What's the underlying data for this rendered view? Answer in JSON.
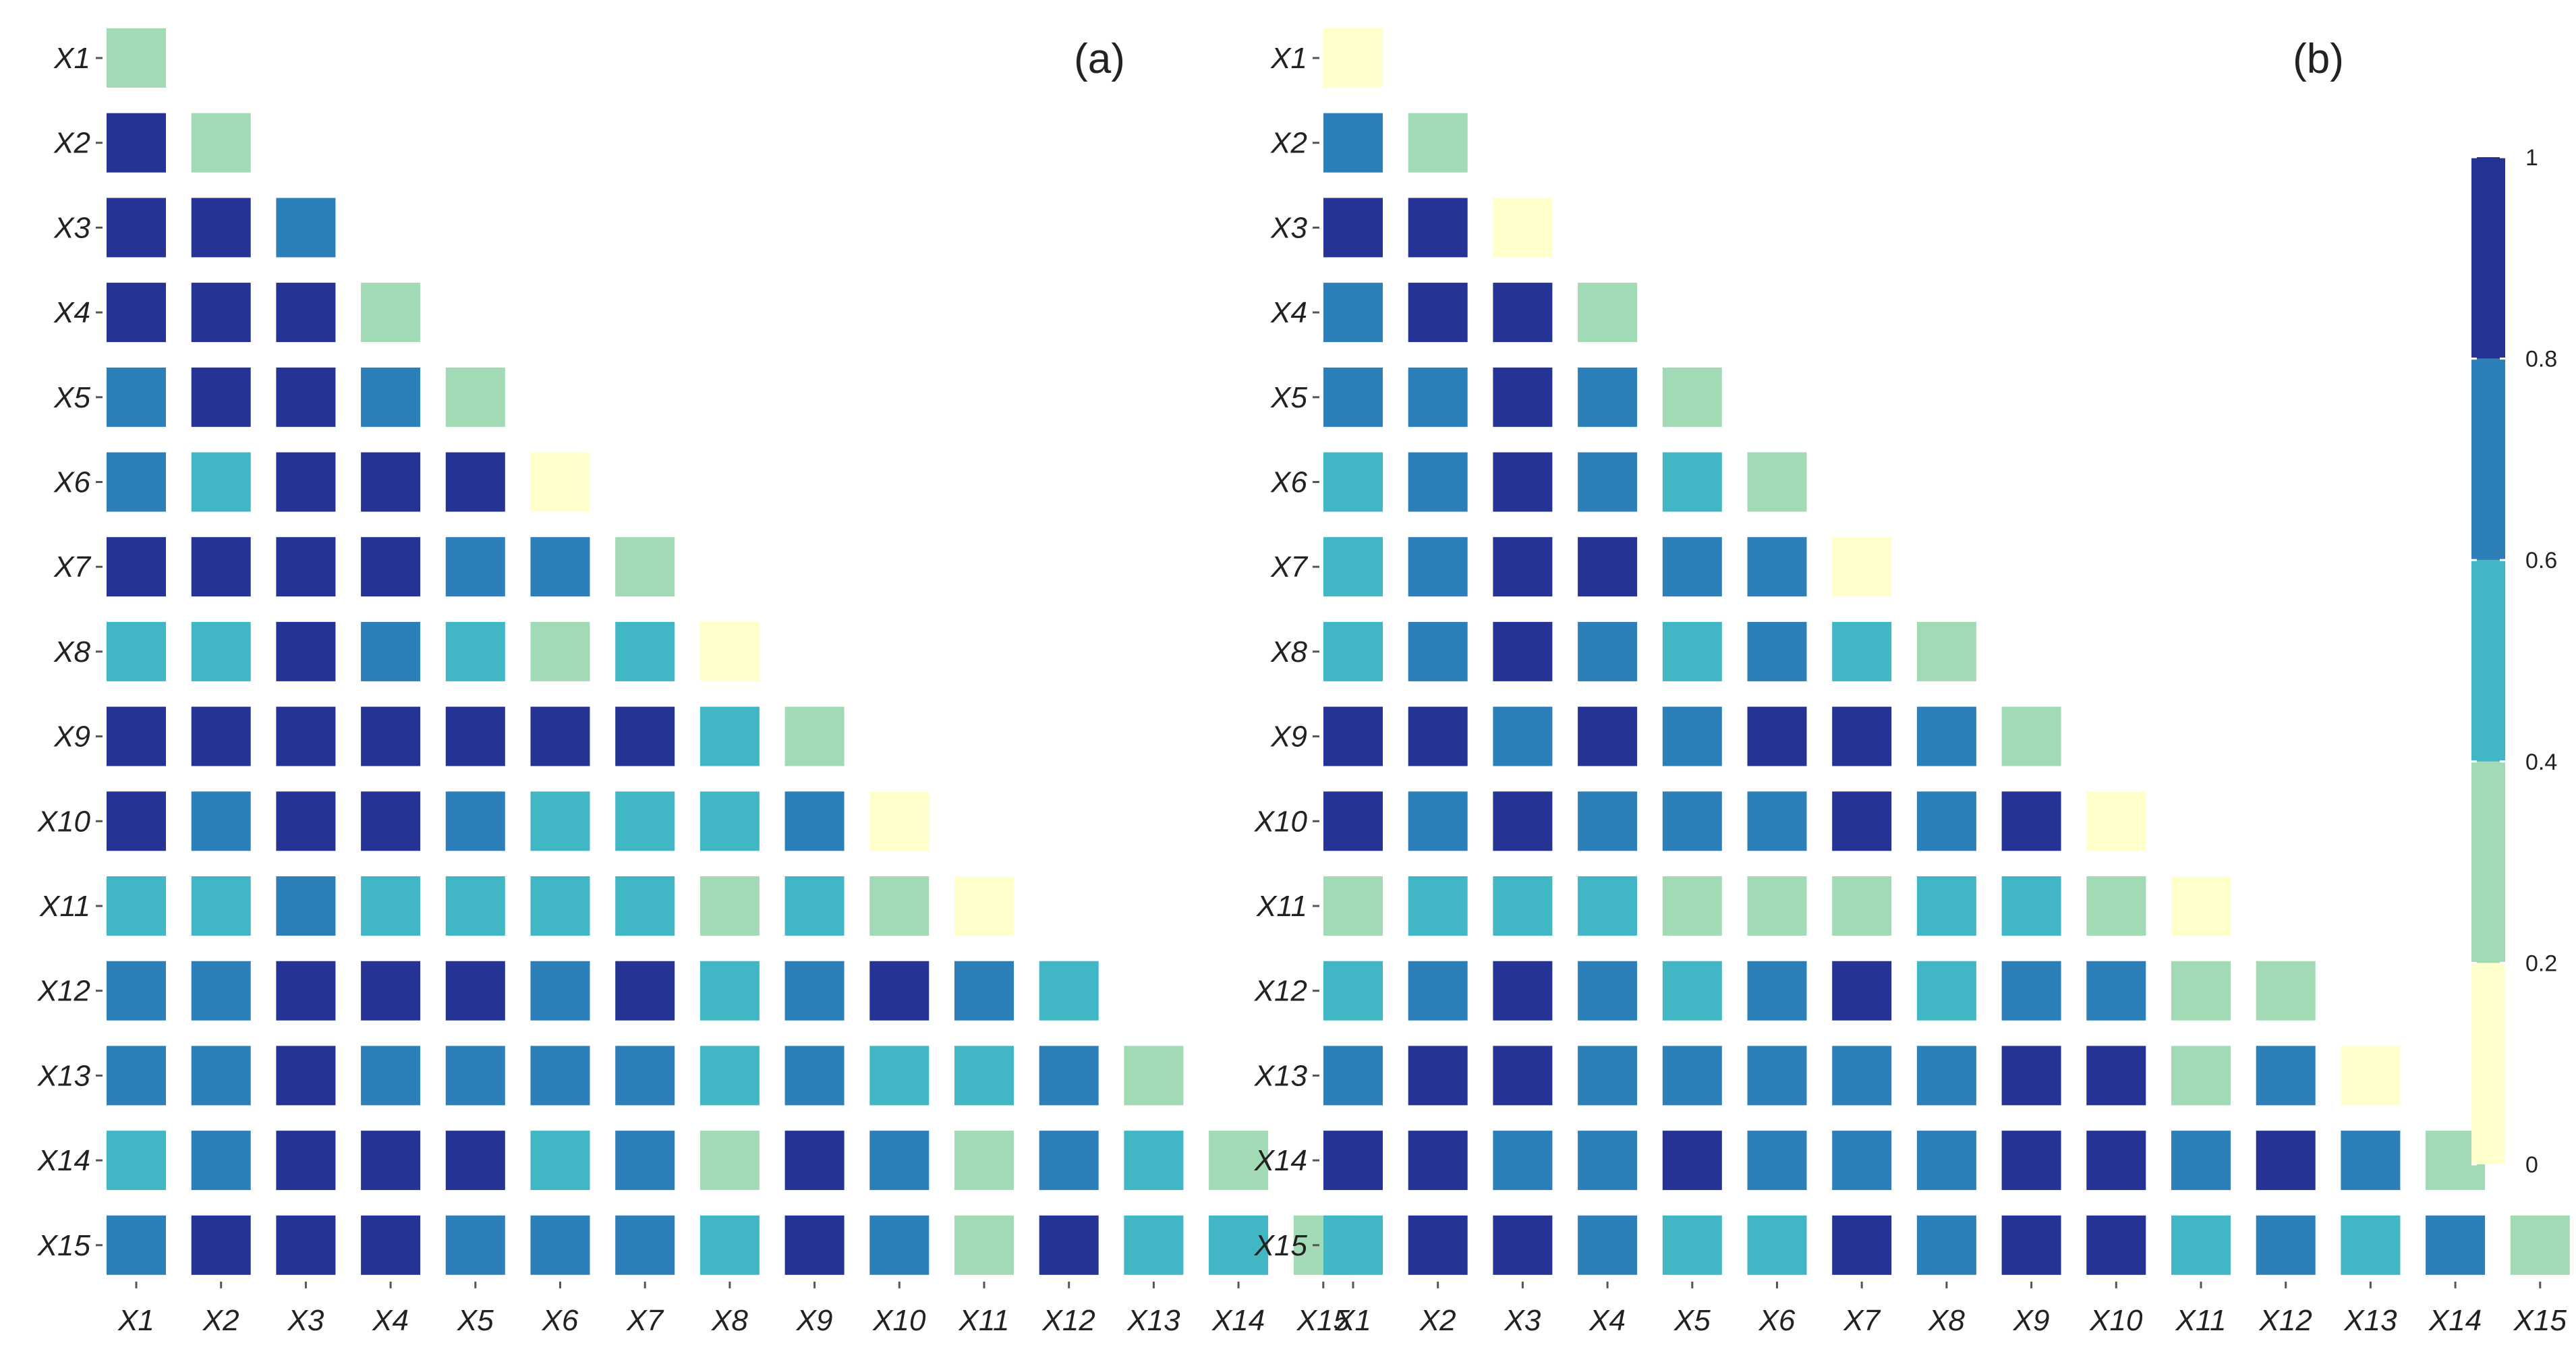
{
  "chart_data": {
    "type": "heatmap",
    "colorbar": {
      "min": 0,
      "max": 1,
      "ticks": [
        0,
        0.2,
        0.4,
        0.6,
        0.8,
        1
      ],
      "tick_labels": [
        "0",
        "0.2",
        "0.4",
        "0.6",
        "0.8",
        "1"
      ],
      "bin_edges": [
        0,
        0.2,
        0.4,
        0.6,
        0.8,
        1.0
      ],
      "bin_colors": [
        "#ffffcc",
        "#a1dab4",
        "#41b6c4",
        "#2c7fb8",
        "#253494"
      ]
    },
    "panels": [
      {
        "label": "(a)",
        "variables": [
          "X1",
          "X2",
          "X3",
          "X4",
          "X5",
          "X6",
          "X7",
          "X8",
          "X9",
          "X10",
          "X11",
          "X12",
          "X13",
          "X14",
          "X15"
        ],
        "matrix": [
          [
            0.3
          ],
          [
            0.9,
            0.3
          ],
          [
            0.9,
            0.9,
            0.7
          ],
          [
            0.9,
            0.9,
            0.9,
            0.3
          ],
          [
            0.7,
            0.9,
            0.9,
            0.7,
            0.3
          ],
          [
            0.7,
            0.5,
            0.9,
            0.9,
            0.9,
            0.1
          ],
          [
            0.9,
            0.9,
            0.9,
            0.9,
            0.7,
            0.7,
            0.3
          ],
          [
            0.5,
            0.5,
            0.9,
            0.7,
            0.5,
            0.3,
            0.5,
            0.1
          ],
          [
            0.9,
            0.9,
            0.9,
            0.9,
            0.9,
            0.9,
            0.9,
            0.5,
            0.3
          ],
          [
            0.9,
            0.7,
            0.9,
            0.9,
            0.7,
            0.5,
            0.5,
            0.5,
            0.7,
            0.1
          ],
          [
            0.5,
            0.5,
            0.7,
            0.5,
            0.5,
            0.5,
            0.5,
            0.3,
            0.5,
            0.3,
            0.1
          ],
          [
            0.7,
            0.7,
            0.9,
            0.9,
            0.9,
            0.7,
            0.9,
            0.5,
            0.7,
            0.9,
            0.7,
            0.5
          ],
          [
            0.7,
            0.7,
            0.9,
            0.7,
            0.7,
            0.7,
            0.7,
            0.5,
            0.7,
            0.5,
            0.5,
            0.7,
            0.3
          ],
          [
            0.5,
            0.7,
            0.9,
            0.9,
            0.9,
            0.5,
            0.7,
            0.3,
            0.9,
            0.7,
            0.3,
            0.7,
            0.5,
            0.3
          ],
          [
            0.7,
            0.9,
            0.9,
            0.9,
            0.7,
            0.7,
            0.7,
            0.5,
            0.9,
            0.7,
            0.3,
            0.9,
            0.5,
            0.5,
            0.3
          ]
        ]
      },
      {
        "label": "(b)",
        "variables": [
          "X1",
          "X2",
          "X3",
          "X4",
          "X5",
          "X6",
          "X7",
          "X8",
          "X9",
          "X10",
          "X11",
          "X12",
          "X13",
          "X14",
          "X15"
        ],
        "matrix": [
          [
            0.1
          ],
          [
            0.7,
            0.3
          ],
          [
            0.9,
            0.9,
            0.1
          ],
          [
            0.7,
            0.9,
            0.9,
            0.3
          ],
          [
            0.7,
            0.7,
            0.9,
            0.7,
            0.3
          ],
          [
            0.5,
            0.7,
            0.9,
            0.7,
            0.5,
            0.3
          ],
          [
            0.5,
            0.7,
            0.9,
            0.9,
            0.7,
            0.7,
            0.1
          ],
          [
            0.5,
            0.7,
            0.9,
            0.7,
            0.5,
            0.7,
            0.5,
            0.3
          ],
          [
            0.9,
            0.9,
            0.7,
            0.9,
            0.7,
            0.9,
            0.9,
            0.7,
            0.3
          ],
          [
            0.9,
            0.7,
            0.9,
            0.7,
            0.7,
            0.7,
            0.9,
            0.7,
            0.9,
            0.1
          ],
          [
            0.3,
            0.5,
            0.5,
            0.5,
            0.3,
            0.3,
            0.3,
            0.5,
            0.5,
            0.3,
            0.1
          ],
          [
            0.5,
            0.7,
            0.9,
            0.7,
            0.5,
            0.7,
            0.9,
            0.5,
            0.7,
            0.7,
            0.3,
            0.3
          ],
          [
            0.7,
            0.9,
            0.9,
            0.7,
            0.7,
            0.7,
            0.7,
            0.7,
            0.9,
            0.9,
            0.3,
            0.7,
            0.1
          ],
          [
            0.9,
            0.9,
            0.7,
            0.7,
            0.9,
            0.7,
            0.7,
            0.7,
            0.9,
            0.9,
            0.7,
            0.9,
            0.7,
            0.3
          ],
          [
            0.5,
            0.9,
            0.9,
            0.7,
            0.5,
            0.5,
            0.9,
            0.7,
            0.9,
            0.9,
            0.5,
            0.7,
            0.5,
            0.7,
            0.3
          ]
        ]
      }
    ]
  }
}
